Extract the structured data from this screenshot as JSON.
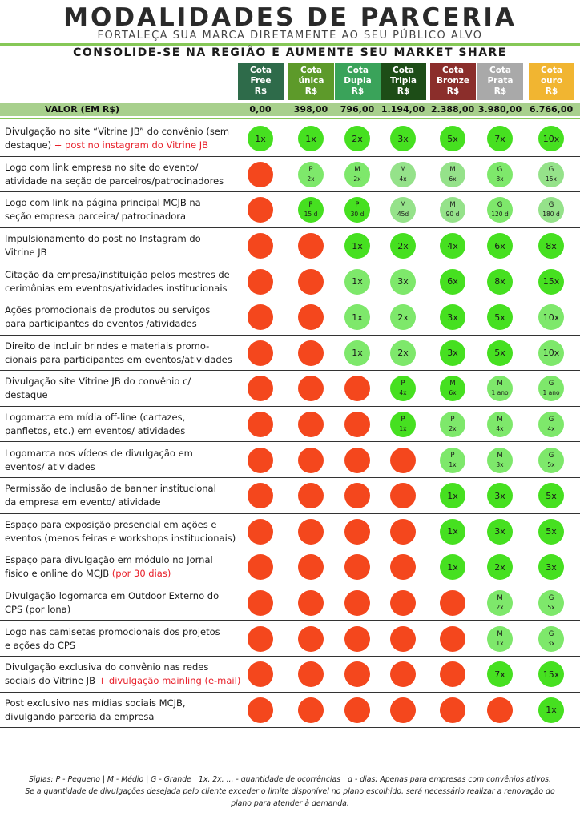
{
  "header": {
    "title": "MODALIDADES DE PARCERIA",
    "subtitle": "FORTALEÇA SUA MARCA DIRETAMENTE AO SEU PÚBLICO ALVO",
    "tagline": "CONSOLIDE-SE NA REGIÃO E AUMENTE SEU MARKET SHARE"
  },
  "value_label": "VALOR (EM R$)",
  "quotas": [
    {
      "l1": "Cota",
      "l2": "Free",
      "l3": "R$",
      "color": "#2e6b4a",
      "value": "0,00"
    },
    {
      "l1": "Cota",
      "l2": "única",
      "l3": "R$",
      "color": "#5d9a2a",
      "value": "398,00"
    },
    {
      "l1": "Cota",
      "l2": "Dupla",
      "l3": "R$",
      "color": "#3aa35a",
      "value": "796,00"
    },
    {
      "l1": "Cota",
      "l2": "Tripla",
      "l3": "R$",
      "color": "#1d4d17",
      "value": "1.194,00"
    },
    {
      "l1": "Cota",
      "l2": "Bronze",
      "l3": "R$",
      "color": "#8b2e2b",
      "value": "2.388,00"
    },
    {
      "l1": "Cota",
      "l2": "Prata",
      "l3": "R$",
      "color": "#a9a9a9",
      "value": "3.980,00"
    },
    {
      "l1": "Cota",
      "l2": "ouro",
      "l3": "R$",
      "color": "#f1b531",
      "value": "6.766,00"
    }
  ],
  "rows": [
    {
      "lines": [
        [
          "Divulgação no site “Vitrine JB” do convênio (sem",
          ""
        ],
        [
          "destaque) ",
          "+ post no instagram do Vitrine JB"
        ]
      ],
      "cells": [
        [
          "g1",
          "1x",
          ""
        ],
        [
          "g1",
          "1x",
          ""
        ],
        [
          "g1",
          "2x",
          ""
        ],
        [
          "g1",
          "3x",
          ""
        ],
        [
          "g1",
          "5x",
          ""
        ],
        [
          "g1",
          "7x",
          ""
        ],
        [
          "g1",
          "10x",
          ""
        ]
      ]
    },
    {
      "lines": [
        [
          "Logo com link empresa no site do evento/",
          ""
        ],
        [
          "atividade na seção de parceiros/patrocinadores",
          ""
        ]
      ],
      "cells": [
        [
          "no",
          "",
          ""
        ],
        [
          "g2",
          "P",
          "2x"
        ],
        [
          "g2",
          "M",
          "2x"
        ],
        [
          "g3",
          "M",
          "4x"
        ],
        [
          "g3",
          "M",
          "6x"
        ],
        [
          "g2",
          "G",
          "8x"
        ],
        [
          "g3",
          "G",
          "15x"
        ]
      ]
    },
    {
      "lines": [
        [
          "Logo com link na página principal MCJB na",
          ""
        ],
        [
          "seção empresa parceira/ patrocinadora",
          ""
        ]
      ],
      "cells": [
        [
          "no",
          "",
          ""
        ],
        [
          "g1",
          "P",
          "15 d"
        ],
        [
          "g1",
          "P",
          "30 d"
        ],
        [
          "g3",
          "M",
          "45d"
        ],
        [
          "g3",
          "M",
          "90 d"
        ],
        [
          "g2",
          "G",
          "120 d"
        ],
        [
          "g3",
          "G",
          "180 d"
        ]
      ]
    },
    {
      "lines": [
        [
          "Impulsionamento do post no Instagram do",
          ""
        ],
        [
          "Vitrine JB",
          ""
        ]
      ],
      "cells": [
        [
          "no",
          "",
          ""
        ],
        [
          "no",
          "",
          ""
        ],
        [
          "g1",
          "1x",
          ""
        ],
        [
          "g1",
          "2x",
          ""
        ],
        [
          "g1",
          "4x",
          ""
        ],
        [
          "g1",
          "6x",
          ""
        ],
        [
          "g1",
          "8x",
          ""
        ]
      ]
    },
    {
      "lines": [
        [
          "Citação da empresa/instituição pelos mestres de",
          ""
        ],
        [
          "cerimônias em eventos/atividades institucionais",
          ""
        ]
      ],
      "cells": [
        [
          "no",
          "",
          ""
        ],
        [
          "no",
          "",
          ""
        ],
        [
          "g2",
          "1x",
          ""
        ],
        [
          "g2",
          "3x",
          ""
        ],
        [
          "g1",
          "6x",
          ""
        ],
        [
          "g1",
          "8x",
          ""
        ],
        [
          "g1",
          "15x",
          ""
        ]
      ]
    },
    {
      "lines": [
        [
          "Ações promocionais de produtos ou serviços",
          ""
        ],
        [
          "para participantes do eventos /atividades",
          ""
        ]
      ],
      "cells": [
        [
          "no",
          "",
          ""
        ],
        [
          "no",
          "",
          ""
        ],
        [
          "g2",
          "1x",
          ""
        ],
        [
          "g2",
          "2x",
          ""
        ],
        [
          "g1",
          "3x",
          ""
        ],
        [
          "g1",
          "5x",
          ""
        ],
        [
          "g2",
          "10x",
          ""
        ]
      ]
    },
    {
      "lines": [
        [
          "Direito de incluir brindes e materiais promo-",
          ""
        ],
        [
          "cionais para participantes em eventos/atividades",
          ""
        ]
      ],
      "cells": [
        [
          "no",
          "",
          ""
        ],
        [
          "no",
          "",
          ""
        ],
        [
          "g2",
          "1x",
          ""
        ],
        [
          "g2",
          "2x",
          ""
        ],
        [
          "g1",
          "3x",
          ""
        ],
        [
          "g1",
          "5x",
          ""
        ],
        [
          "g2",
          "10x",
          ""
        ]
      ]
    },
    {
      "lines": [
        [
          "Divulgação site Vitrine JB do convênio c/",
          ""
        ],
        [
          "destaque",
          ""
        ]
      ],
      "cells": [
        [
          "no",
          "",
          ""
        ],
        [
          "no",
          "",
          ""
        ],
        [
          "no",
          "",
          ""
        ],
        [
          "g1",
          "P",
          "4x"
        ],
        [
          "g1",
          "M",
          "6x"
        ],
        [
          "g2",
          "M",
          "1 ano"
        ],
        [
          "g2",
          "G",
          "1 ano"
        ]
      ]
    },
    {
      "lines": [
        [
          "Logomarca em mídia off-line (cartazes,",
          ""
        ],
        [
          "panfletos, etc.) em eventos/ atividades",
          ""
        ]
      ],
      "cells": [
        [
          "no",
          "",
          ""
        ],
        [
          "no",
          "",
          ""
        ],
        [
          "no",
          "",
          ""
        ],
        [
          "g1",
          "P",
          "1x"
        ],
        [
          "g2",
          "P",
          "2x"
        ],
        [
          "g2",
          "M",
          "4x"
        ],
        [
          "g2",
          "G",
          "4x"
        ]
      ]
    },
    {
      "lines": [
        [
          "Logomarca nos vídeos de divulgação em",
          ""
        ],
        [
          "eventos/ atividades",
          ""
        ]
      ],
      "cells": [
        [
          "no",
          "",
          ""
        ],
        [
          "no",
          "",
          ""
        ],
        [
          "no",
          "",
          ""
        ],
        [
          "no",
          "",
          ""
        ],
        [
          "g2",
          "P",
          "1x"
        ],
        [
          "g2",
          "M",
          "3x"
        ],
        [
          "g2",
          "G",
          "5x"
        ]
      ]
    },
    {
      "lines": [
        [
          "Permissão de inclusão de banner institucional",
          ""
        ],
        [
          "da empresa em evento/ atividade",
          ""
        ]
      ],
      "cells": [
        [
          "no",
          "",
          ""
        ],
        [
          "no",
          "",
          ""
        ],
        [
          "no",
          "",
          ""
        ],
        [
          "no",
          "",
          ""
        ],
        [
          "g1",
          "1x",
          ""
        ],
        [
          "g1",
          "3x",
          ""
        ],
        [
          "g1",
          "5x",
          ""
        ]
      ]
    },
    {
      "lines": [
        [
          "Espaço para exposição presencial em ações e",
          ""
        ],
        [
          "eventos (menos feiras e workshops institucionais)",
          ""
        ]
      ],
      "cells": [
        [
          "no",
          "",
          ""
        ],
        [
          "no",
          "",
          ""
        ],
        [
          "no",
          "",
          ""
        ],
        [
          "no",
          "",
          ""
        ],
        [
          "g1",
          "1x",
          ""
        ],
        [
          "g1",
          "3x",
          ""
        ],
        [
          "g1",
          "5x",
          ""
        ]
      ]
    },
    {
      "lines": [
        [
          "Espaço para divulgação em módulo no Jornal",
          ""
        ],
        [
          "físico e online do MCJB ",
          "(por 30 dias)"
        ]
      ],
      "cells": [
        [
          "no",
          "",
          ""
        ],
        [
          "no",
          "",
          ""
        ],
        [
          "no",
          "",
          ""
        ],
        [
          "no",
          "",
          ""
        ],
        [
          "g1",
          "1x",
          ""
        ],
        [
          "g1",
          "2x",
          ""
        ],
        [
          "g1",
          "3x",
          ""
        ]
      ]
    },
    {
      "lines": [
        [
          "Divulgação logomarca em Outdoor Externo do",
          ""
        ],
        [
          "CPS (por lona)",
          ""
        ]
      ],
      "cells": [
        [
          "no",
          "",
          ""
        ],
        [
          "no",
          "",
          ""
        ],
        [
          "no",
          "",
          ""
        ],
        [
          "no",
          "",
          ""
        ],
        [
          "no",
          "",
          ""
        ],
        [
          "g2",
          "M",
          "2x"
        ],
        [
          "g2",
          "G",
          "5x"
        ]
      ]
    },
    {
      "lines": [
        [
          "Logo nas camisetas promocionais dos projetos",
          ""
        ],
        [
          "e ações do CPS",
          ""
        ]
      ],
      "cells": [
        [
          "no",
          "",
          ""
        ],
        [
          "no",
          "",
          ""
        ],
        [
          "no",
          "",
          ""
        ],
        [
          "no",
          "",
          ""
        ],
        [
          "no",
          "",
          ""
        ],
        [
          "g2",
          "M",
          "1x"
        ],
        [
          "g2",
          "G",
          "3x"
        ]
      ]
    },
    {
      "lines": [
        [
          "Divulgação exclusiva do convênio nas redes",
          ""
        ],
        [
          "sociais do Vitrine JB ",
          "+ divulgação mainling (e-mail)"
        ]
      ],
      "cells": [
        [
          "no",
          "",
          ""
        ],
        [
          "no",
          "",
          ""
        ],
        [
          "no",
          "",
          ""
        ],
        [
          "no",
          "",
          ""
        ],
        [
          "no",
          "",
          ""
        ],
        [
          "g1",
          "7x",
          ""
        ],
        [
          "g1",
          "15x",
          ""
        ]
      ]
    },
    {
      "lines": [
        [
          "Post exclusivo nas mídias sociais MCJB,",
          ""
        ],
        [
          "divulgando parceria da empresa",
          ""
        ]
      ],
      "cells": [
        [
          "no",
          "",
          ""
        ],
        [
          "no",
          "",
          ""
        ],
        [
          "no",
          "",
          ""
        ],
        [
          "no",
          "",
          ""
        ],
        [
          "no",
          "",
          ""
        ],
        [
          "no",
          "",
          ""
        ],
        [
          "g1",
          "1x",
          ""
        ]
      ]
    }
  ],
  "footnote": {
    "line1": "Siglas: P - Pequeno | M - Médio | G - Grande | 1x, 2x. ... - quantidade de ocorrências | d - dias; Apenas para empresas com convênios ativos.",
    "line2": "Se a quantidade de divulgações desejada pelo cliente exceder o limite disponível no plano escolhido, será necessário realizar a renovação do",
    "line3": "plano para atender à demanda."
  }
}
